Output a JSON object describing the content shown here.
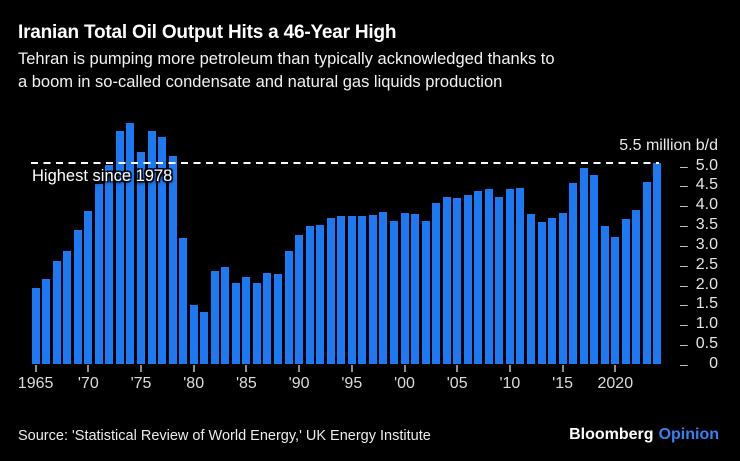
{
  "header": {
    "title": "Iranian Total Oil Output Hits a 46-Year High",
    "subtitle_line1": "Tehran is pumping more petroleum than typically acknowledged thanks to",
    "subtitle_line2": "a boom in so-called condensate and natural gas liquids production"
  },
  "chart_data": {
    "type": "bar",
    "series_name": "Iran total oil output",
    "unit": "million b/d",
    "x": [
      1965,
      1966,
      1967,
      1968,
      1969,
      1970,
      1971,
      1972,
      1973,
      1974,
      1975,
      1976,
      1977,
      1978,
      1979,
      1980,
      1981,
      1982,
      1983,
      1984,
      1985,
      1986,
      1987,
      1988,
      1989,
      1990,
      1991,
      1992,
      1993,
      1994,
      1995,
      1996,
      1997,
      1998,
      1999,
      2000,
      2001,
      2002,
      2003,
      2004,
      2005,
      2006,
      2007,
      2008,
      2009,
      2010,
      2011,
      2012,
      2013,
      2014,
      2015,
      2016,
      2017,
      2018,
      2019,
      2020,
      2021,
      2022,
      2023,
      2024
    ],
    "values": [
      1.91,
      2.13,
      2.6,
      2.84,
      3.38,
      3.85,
      4.54,
      5.02,
      5.86,
      6.06,
      5.35,
      5.88,
      5.71,
      5.24,
      3.17,
      1.48,
      1.32,
      2.35,
      2.44,
      2.03,
      2.19,
      2.03,
      2.3,
      2.28,
      2.86,
      3.25,
      3.47,
      3.49,
      3.69,
      3.72,
      3.74,
      3.74,
      3.76,
      3.84,
      3.6,
      3.81,
      3.79,
      3.61,
      4.05,
      4.2,
      4.19,
      4.27,
      4.36,
      4.4,
      4.22,
      4.4,
      4.43,
      3.77,
      3.59,
      3.67,
      3.81,
      4.56,
      4.94,
      4.76,
      3.47,
      3.19,
      3.66,
      3.89,
      4.58,
      5.07
    ],
    "ylim": [
      0,
      6.5
    ],
    "grid": false,
    "legend": "none",
    "bar_color": "#1c79f2",
    "axis_text_color": "#e5e5e5",
    "ytick_top_label": "5.5 million b/d",
    "yticks": [
      {
        "value": 5.0,
        "label": "5.0"
      },
      {
        "value": 4.5,
        "label": "4.5"
      },
      {
        "value": 4.0,
        "label": "4.0"
      },
      {
        "value": 3.5,
        "label": "3.5"
      },
      {
        "value": 3.0,
        "label": "3.0"
      },
      {
        "value": 2.5,
        "label": "2.5"
      },
      {
        "value": 2.0,
        "label": "2.0"
      },
      {
        "value": 1.5,
        "label": "1.5"
      },
      {
        "value": 1.0,
        "label": "1.0"
      },
      {
        "value": 0.5,
        "label": "0.5"
      },
      {
        "value": 0,
        "label": "0"
      }
    ],
    "xticks": [
      {
        "year": 1965,
        "label": "1965"
      },
      {
        "year": 1970,
        "label": "'70"
      },
      {
        "year": 1975,
        "label": "'75"
      },
      {
        "year": 1980,
        "label": "'80"
      },
      {
        "year": 1985,
        "label": "'85"
      },
      {
        "year": 1990,
        "label": "'90"
      },
      {
        "year": 1995,
        "label": "'95"
      },
      {
        "year": 2000,
        "label": "'00"
      },
      {
        "year": 2005,
        "label": "'05"
      },
      {
        "year": 2010,
        "label": "'10"
      },
      {
        "year": 2015,
        "label": "'15"
      },
      {
        "year": 2020,
        "label": "2020"
      }
    ],
    "reference_line": {
      "value": 5.1,
      "label": "Highest since 1978",
      "color": "#ffffff",
      "style": "dashed"
    }
  },
  "footer": {
    "source": "Source: 'Statistical Review of World Energy,' UK Energy Institute",
    "brand": "Bloomberg",
    "brand_suffix": "Opinion"
  }
}
